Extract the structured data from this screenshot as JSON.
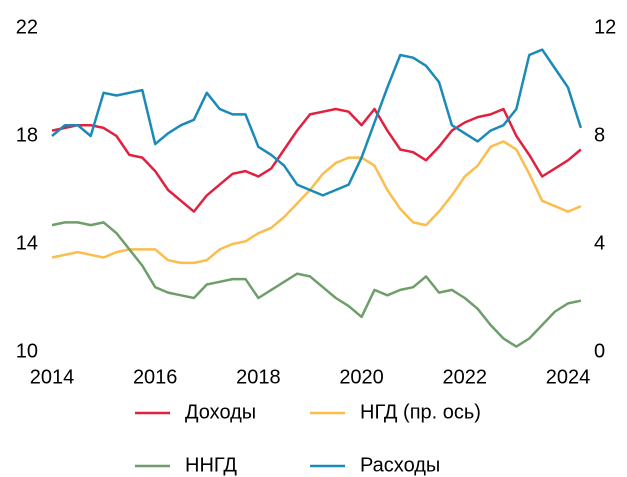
{
  "chart_data": {
    "type": "line",
    "x": [
      2014,
      2014.25,
      2014.5,
      2014.75,
      2015,
      2015.25,
      2015.5,
      2015.75,
      2016,
      2016.25,
      2016.5,
      2016.75,
      2017,
      2017.25,
      2017.5,
      2017.75,
      2018,
      2018.25,
      2018.5,
      2018.75,
      2019,
      2019.25,
      2019.5,
      2019.75,
      2020,
      2020.25,
      2020.5,
      2020.75,
      2021,
      2021.25,
      2021.5,
      2021.75,
      2022,
      2022.25,
      2022.5,
      2022.75,
      2023,
      2023.25,
      2023.5,
      2023.75,
      2024,
      2024.25
    ],
    "series": [
      {
        "name": "Доходы",
        "color": "#e0213f",
        "values": [
          18.2,
          18.3,
          18.4,
          18.4,
          18.3,
          18.0,
          17.3,
          17.2,
          16.7,
          16.0,
          15.6,
          15.2,
          15.8,
          16.2,
          16.6,
          16.7,
          16.5,
          16.8,
          17.5,
          18.2,
          18.8,
          18.9,
          19.0,
          18.9,
          18.4,
          19.0,
          18.2,
          17.5,
          17.4,
          17.1,
          17.6,
          18.2,
          18.5,
          18.7,
          18.8,
          19.0,
          18.0,
          17.3,
          16.5,
          16.8,
          17.1,
          17.5
        ]
      },
      {
        "name": "НГД (пр. ось)",
        "color": "#fbbd4c",
        "axis": "y2",
        "values": [
          3.5,
          3.6,
          3.7,
          3.6,
          3.5,
          3.7,
          3.8,
          3.8,
          3.8,
          3.4,
          3.3,
          3.3,
          3.4,
          3.8,
          4.0,
          4.1,
          4.4,
          4.6,
          5.0,
          5.5,
          6.0,
          6.6,
          7.0,
          7.2,
          7.2,
          6.9,
          6.0,
          5.3,
          4.8,
          4.7,
          5.2,
          5.8,
          6.5,
          6.9,
          7.6,
          7.8,
          7.5,
          6.6,
          5.6,
          5.4,
          5.2,
          5.4
        ]
      },
      {
        "name": "ННГД",
        "color": "#6f9e6b",
        "values": [
          14.7,
          14.8,
          14.8,
          14.7,
          14.8,
          14.4,
          13.8,
          13.2,
          12.4,
          12.2,
          12.1,
          12.0,
          12.5,
          12.6,
          12.7,
          12.7,
          12.0,
          12.3,
          12.6,
          12.9,
          12.8,
          12.4,
          12.0,
          11.7,
          11.3,
          12.3,
          12.1,
          12.3,
          12.4,
          12.8,
          12.2,
          12.3,
          12.0,
          11.6,
          11.0,
          10.5,
          10.2,
          10.5,
          11.0,
          11.5,
          11.8,
          11.9
        ]
      },
      {
        "name": "Расходы",
        "color": "#1a8ab8",
        "values": [
          18.0,
          18.4,
          18.4,
          18.0,
          19.6,
          19.5,
          19.6,
          19.7,
          17.7,
          18.1,
          18.4,
          18.6,
          19.6,
          19.0,
          18.8,
          18.8,
          17.6,
          17.3,
          16.9,
          16.2,
          16.0,
          15.8,
          16.0,
          16.2,
          17.2,
          18.5,
          19.8,
          21.0,
          20.9,
          20.6,
          20.0,
          18.4,
          18.1,
          17.8,
          18.2,
          18.4,
          19.0,
          21.0,
          21.2,
          20.5,
          19.8,
          18.3
        ]
      }
    ],
    "xlim": [
      2014,
      2024.4
    ],
    "xticks": [
      2014,
      2016,
      2018,
      2020,
      2022,
      2024
    ],
    "ylim": [
      10,
      22
    ],
    "yticks": [
      10,
      14,
      18,
      22
    ],
    "y2lim": [
      0,
      12
    ],
    "y2ticks": [
      0,
      4,
      8,
      12
    ],
    "legend": "bottom"
  }
}
